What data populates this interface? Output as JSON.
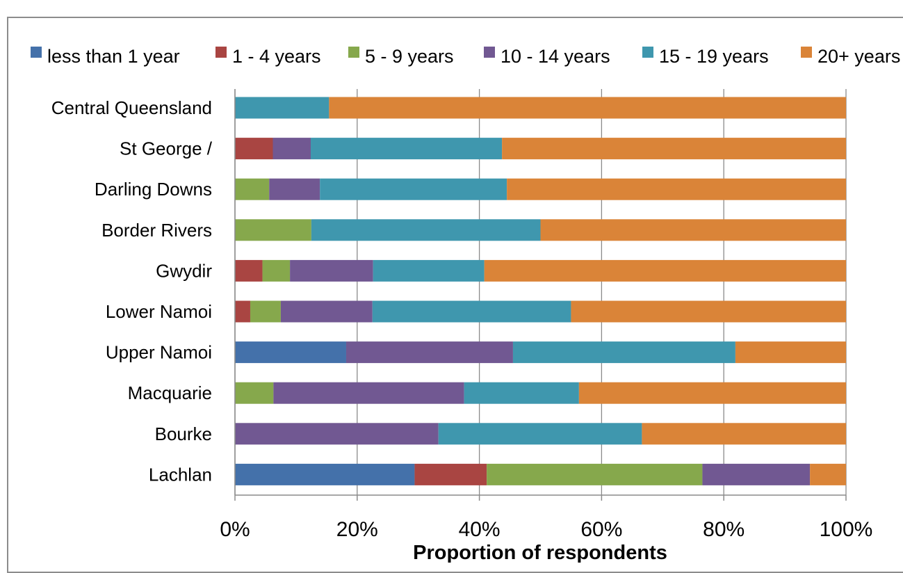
{
  "chart_data": {
    "type": "bar",
    "orientation": "horizontal",
    "stacked": "percent",
    "title": "",
    "xlabel": "Proportion  of respondents",
    "ylabel": "",
    "xlim": [
      0,
      100
    ],
    "xticks": [
      "0%",
      "20%",
      "40%",
      "60%",
      "80%",
      "100%"
    ],
    "grid": "vertical",
    "legend": "top",
    "categories": [
      "Central Queensland",
      "St George /",
      "Darling Downs",
      "Border Rivers",
      "Gwydir",
      "Lower Namoi",
      "Upper Namoi",
      "Macquarie",
      "Bourke",
      "Lachlan"
    ],
    "series": [
      {
        "name": "less than 1 year",
        "color": "#4471aa",
        "values": [
          0,
          0,
          0,
          0,
          0,
          0,
          18.2,
          0,
          0,
          29.4
        ]
      },
      {
        "name": "1 - 4 years",
        "color": "#a94542",
        "values": [
          0,
          6.2,
          0,
          0,
          4.5,
          2.5,
          0,
          0,
          0,
          11.8
        ]
      },
      {
        "name": "5 - 9 years",
        "color": "#86a84c",
        "values": [
          0,
          0,
          5.6,
          12.5,
          4.5,
          5.0,
          0,
          6.3,
          0,
          35.3
        ]
      },
      {
        "name": "10 - 14 years",
        "color": "#715892",
        "values": [
          0,
          6.2,
          8.3,
          0,
          13.6,
          15.0,
          27.3,
          31.2,
          33.3,
          17.6
        ]
      },
      {
        "name": "15 - 19 years",
        "color": "#3f97ae",
        "values": [
          15.4,
          31.3,
          30.6,
          37.5,
          18.2,
          32.5,
          36.4,
          18.8,
          33.3,
          0
        ]
      },
      {
        "name": "20+ years",
        "color": "#da8438",
        "values": [
          84.6,
          56.3,
          55.5,
          50.0,
          59.2,
          45.0,
          18.1,
          43.7,
          33.4,
          5.9
        ]
      }
    ]
  }
}
